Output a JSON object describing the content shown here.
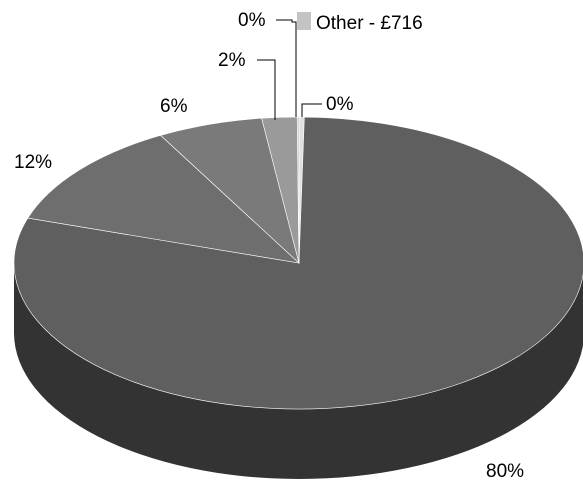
{
  "chart_data": {
    "type": "pie",
    "style": "3d",
    "slices": [
      {
        "label": "",
        "value": 80,
        "display": "80%"
      },
      {
        "label": "",
        "value": 12,
        "display": "12%"
      },
      {
        "label": "",
        "value": 6,
        "display": "6%"
      },
      {
        "label": "",
        "value": 2,
        "display": "2%"
      },
      {
        "label": "Other - £716",
        "value": 0.1,
        "display": "0%"
      },
      {
        "label": "",
        "value": 0.3,
        "display": "0%"
      }
    ],
    "legend": {
      "entries": [
        "Other - £716"
      ],
      "placement": "top"
    },
    "colors": {
      "main": "#5f5f5f",
      "main_side": "#333333",
      "slice_12": "#6e6e6e",
      "slice_6": "#7a7a7a",
      "slice_2": "#9a9a9a",
      "other": "#c4c4c4",
      "slice_0b": "#e0e0e0",
      "slice_border": "#ffffff"
    }
  }
}
